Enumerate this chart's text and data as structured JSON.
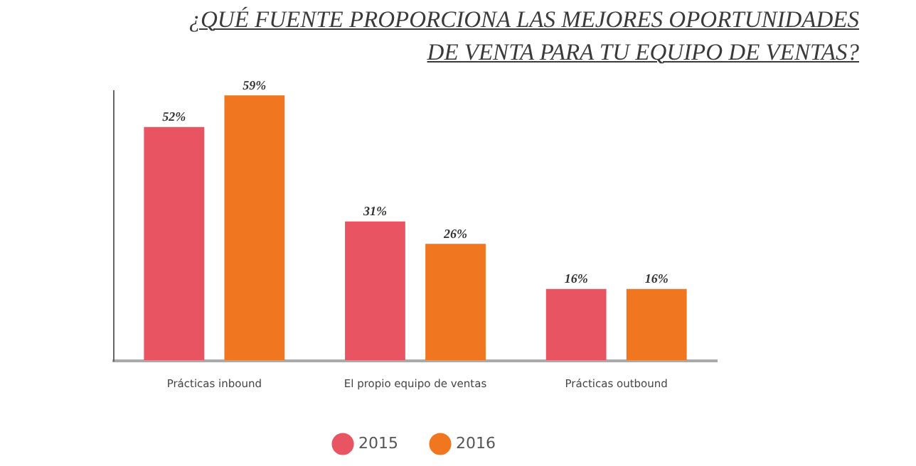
{
  "chart_data": {
    "type": "bar",
    "title": "¿QUÉ FUENTE PROPORCIONA LAS MEJORES OPORTUNIDADES DE VENTA PARA TU EQUIPO DE VENTAS?",
    "categories": [
      "Prácticas inbound",
      "El propio equipo de ventas",
      "Prácticas outbound"
    ],
    "series": [
      {
        "name": "2015",
        "color": "#e85462",
        "values": [
          52,
          31,
          16
        ],
        "value_labels": [
          "52%",
          "31%",
          "16%"
        ]
      },
      {
        "name": "2016",
        "color": "#f07620",
        "values": [
          59,
          26,
          16
        ],
        "value_labels": [
          "59%",
          "26%",
          "16%"
        ]
      }
    ],
    "grid": false,
    "legend": "bottom"
  }
}
